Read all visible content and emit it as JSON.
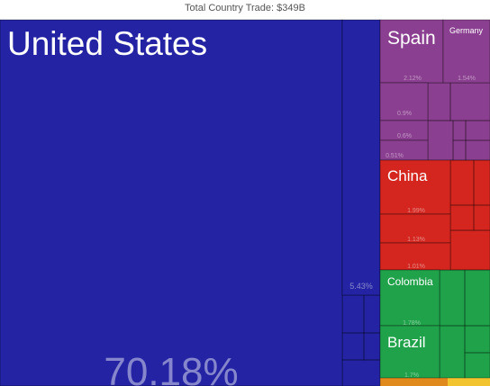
{
  "chart_data": {
    "type": "treemap",
    "title": "Total Country Trade: $349B",
    "categories": [
      "United States",
      null,
      "Spain",
      "Germany",
      null,
      null,
      null,
      "China",
      null,
      null,
      "Colombia",
      "Brazil"
    ],
    "values": [
      70.18,
      5.43,
      2.12,
      1.54,
      0.9,
      0.6,
      0.51,
      1.99,
      1.13,
      1.01,
      1.78,
      1.7
    ],
    "value_labels": [
      "70.18%",
      "5.43%",
      "2.12%",
      "1.54%",
      "0.9%",
      "0.6%",
      "0.51%",
      "1.99%",
      "1.13%",
      "1.01%",
      "1.78%",
      "1.7%"
    ],
    "colors": [
      "#2323a3",
      "#2323a3",
      "#8b3f90",
      "#8b3f90",
      "#8b3f90",
      "#8b3f90",
      "#8b3f90",
      "#d4261f",
      "#d4261f",
      "#d4261f",
      "#1fa24a",
      "#1fa24a"
    ]
  }
}
